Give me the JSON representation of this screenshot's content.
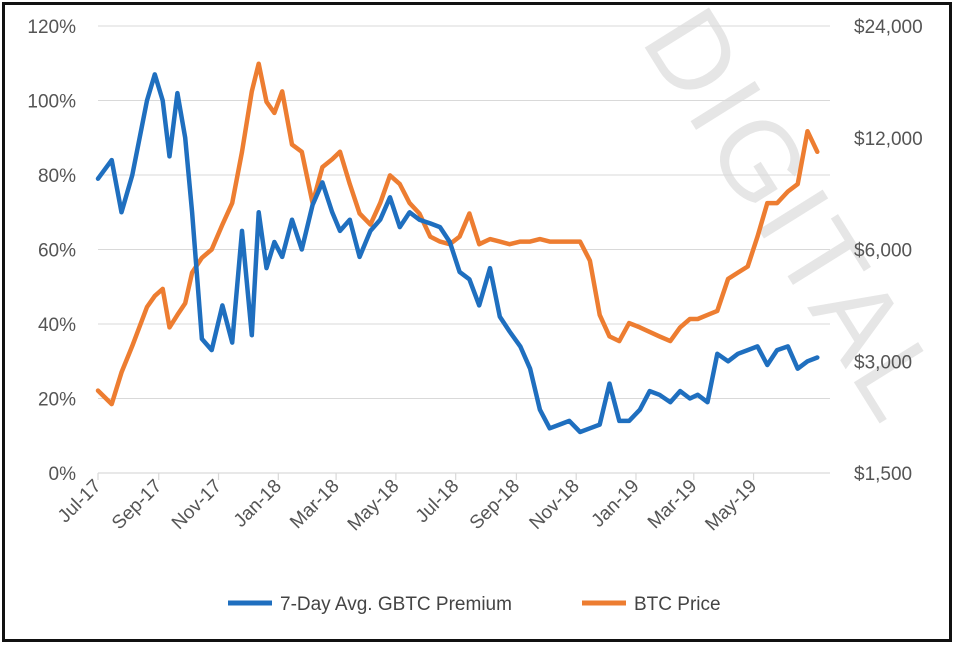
{
  "chart_data": {
    "type": "line",
    "watermark": "DIGITAL",
    "x_ticks": [
      "Jul-17",
      "Sep-17",
      "Nov-17",
      "Jan-18",
      "Mar-18",
      "May-18",
      "Jul-18",
      "Sep-18",
      "Nov-18",
      "Jan-19",
      "Mar-19",
      "May-19"
    ],
    "y_left": {
      "ticks": [
        "0%",
        "20%",
        "40%",
        "60%",
        "80%",
        "100%",
        "120%"
      ],
      "ylim": [
        0,
        120
      ]
    },
    "y_right": {
      "ticks": [
        "$1,500",
        "$3,000",
        "$6,000",
        "$12,000",
        "$24,000"
      ],
      "scale": "log2",
      "ylim": [
        1500,
        24000
      ]
    },
    "grid": true,
    "legend_position": "bottom",
    "series": [
      {
        "name": "7-Day Avg. GBTC Premium",
        "axis": "left",
        "color": "#1f6fbf",
        "x": [
          "2017-07-01",
          "2017-07-15",
          "2017-07-25",
          "2017-08-05",
          "2017-08-20",
          "2017-08-28",
          "2017-09-05",
          "2017-09-12",
          "2017-09-20",
          "2017-09-28",
          "2017-10-05",
          "2017-10-15",
          "2017-10-25",
          "2017-11-05",
          "2017-11-15",
          "2017-11-25",
          "2017-12-05",
          "2017-12-12",
          "2017-12-20",
          "2017-12-28",
          "2018-01-05",
          "2018-01-15",
          "2018-01-25",
          "2018-02-05",
          "2018-02-15",
          "2018-02-25",
          "2018-03-05",
          "2018-03-15",
          "2018-03-25",
          "2018-04-05",
          "2018-04-15",
          "2018-04-25",
          "2018-05-05",
          "2018-05-15",
          "2018-05-25",
          "2018-06-05",
          "2018-06-15",
          "2018-06-25",
          "2018-07-05",
          "2018-07-15",
          "2018-07-25",
          "2018-08-05",
          "2018-08-15",
          "2018-08-25",
          "2018-09-05",
          "2018-09-15",
          "2018-09-25",
          "2018-10-05",
          "2018-10-15",
          "2018-10-25",
          "2018-11-05",
          "2018-11-15",
          "2018-11-25",
          "2018-12-05",
          "2018-12-15",
          "2018-12-25",
          "2019-01-05",
          "2019-01-15",
          "2019-01-25",
          "2019-02-05",
          "2019-02-15",
          "2019-02-25",
          "2019-03-05",
          "2019-03-15",
          "2019-03-25",
          "2019-04-05",
          "2019-04-15",
          "2019-04-25",
          "2019-05-05",
          "2019-05-15",
          "2019-05-25",
          "2019-06-05",
          "2019-06-15",
          "2019-06-25",
          "2019-07-05"
        ],
        "values": [
          79,
          84,
          70,
          80,
          100,
          107,
          100,
          85,
          102,
          90,
          70,
          36,
          33,
          45,
          35,
          65,
          37,
          70,
          55,
          62,
          58,
          68,
          60,
          72,
          78,
          70,
          65,
          68,
          58,
          65,
          68,
          74,
          66,
          70,
          68,
          67,
          66,
          62,
          54,
          52,
          45,
          55,
          42,
          38,
          34,
          28,
          17,
          12,
          13,
          14,
          11,
          12,
          13,
          24,
          14,
          14,
          17,
          22,
          21,
          19,
          22,
          20,
          21,
          19,
          32,
          30,
          32,
          33,
          34,
          29,
          33,
          34,
          28,
          30,
          31
        ]
      },
      {
        "name": "BTC Price",
        "axis": "right",
        "color": "#ed7d31",
        "x": [
          "2017-07-01",
          "2017-07-15",
          "2017-07-25",
          "2017-08-05",
          "2017-08-20",
          "2017-08-28",
          "2017-09-05",
          "2017-09-12",
          "2017-09-20",
          "2017-09-28",
          "2017-10-05",
          "2017-10-15",
          "2017-10-25",
          "2017-11-05",
          "2017-11-15",
          "2017-11-25",
          "2017-12-05",
          "2017-12-12",
          "2017-12-20",
          "2017-12-28",
          "2018-01-05",
          "2018-01-15",
          "2018-01-25",
          "2018-02-05",
          "2018-02-15",
          "2018-02-25",
          "2018-03-05",
          "2018-03-15",
          "2018-03-25",
          "2018-04-05",
          "2018-04-15",
          "2018-04-25",
          "2018-05-05",
          "2018-05-15",
          "2018-05-25",
          "2018-06-05",
          "2018-06-15",
          "2018-06-25",
          "2018-07-05",
          "2018-07-15",
          "2018-07-25",
          "2018-08-05",
          "2018-08-15",
          "2018-08-25",
          "2018-09-05",
          "2018-09-15",
          "2018-09-25",
          "2018-10-05",
          "2018-10-15",
          "2018-10-25",
          "2018-11-05",
          "2018-11-15",
          "2018-11-25",
          "2018-12-05",
          "2018-12-15",
          "2018-12-25",
          "2019-01-05",
          "2019-01-15",
          "2019-01-25",
          "2019-02-05",
          "2019-02-15",
          "2019-02-25",
          "2019-03-05",
          "2019-03-15",
          "2019-03-25",
          "2019-04-05",
          "2019-04-15",
          "2019-04-25",
          "2019-05-05",
          "2019-05-15",
          "2019-05-25",
          "2019-06-05",
          "2019-06-15",
          "2019-06-25",
          "2019-07-05"
        ],
        "values": [
          2500,
          2300,
          2800,
          3300,
          4200,
          4500,
          4700,
          3700,
          4000,
          4300,
          5200,
          5700,
          6000,
          7000,
          8000,
          11000,
          16000,
          19000,
          15000,
          14000,
          16000,
          11500,
          11000,
          8000,
          10000,
          10500,
          11000,
          9000,
          7500,
          7000,
          8000,
          9500,
          9000,
          8000,
          7500,
          6500,
          6300,
          6200,
          6500,
          7500,
          6200,
          6400,
          6300,
          6200,
          6300,
          6300,
          6400,
          6300,
          6300,
          6300,
          6300,
          5600,
          4000,
          3500,
          3400,
          3800,
          3700,
          3600,
          3500,
          3400,
          3700,
          3900,
          3900,
          4000,
          4100,
          5000,
          5200,
          5400,
          6500,
          8000,
          8000,
          8600,
          9000,
          12500,
          11000
        ]
      }
    ]
  }
}
